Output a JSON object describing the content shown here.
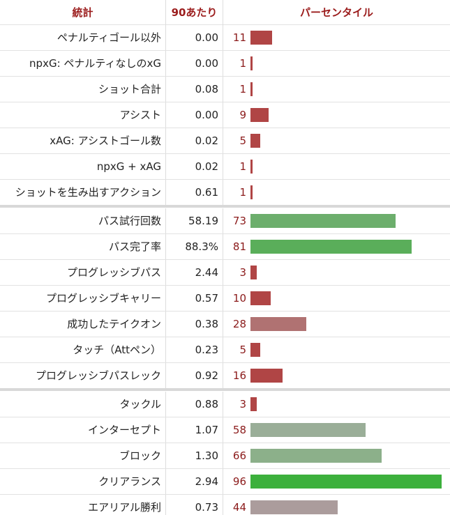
{
  "table": {
    "header": [
      "統計",
      "90あたり",
      "パーセンタイル"
    ],
    "groups": [
      [
        {
          "stat": "ペナルティゴール以外",
          "per90": "0.00",
          "percentile": 11,
          "color": "#b04545"
        },
        {
          "stat": "npxG: ペナルティなしのxG",
          "per90": "0.00",
          "percentile": 1,
          "color": "#b04545"
        },
        {
          "stat": "ショット合計",
          "per90": "0.08",
          "percentile": 1,
          "color": "#b04545"
        },
        {
          "stat": "アシスト",
          "per90": "0.00",
          "percentile": 9,
          "color": "#b04545"
        },
        {
          "stat": "xAG: アシストゴール数",
          "per90": "0.02",
          "percentile": 5,
          "color": "#b04545"
        },
        {
          "stat": "npxG + xAG",
          "per90": "0.02",
          "percentile": 1,
          "color": "#b04545"
        },
        {
          "stat": "ショットを生み出すアクション",
          "per90": "0.61",
          "percentile": 1,
          "color": "#b04545"
        }
      ],
      [
        {
          "stat": "パス試行回数",
          "per90": "58.19",
          "percentile": 73,
          "color": "#6cae6c"
        },
        {
          "stat": "パス完了率",
          "per90": "88.3%",
          "percentile": 81,
          "color": "#5aae5a"
        },
        {
          "stat": "プログレッシブパス",
          "per90": "2.44",
          "percentile": 3,
          "color": "#b04545"
        },
        {
          "stat": "プログレッシブキャリー",
          "per90": "0.57",
          "percentile": 10,
          "color": "#b04545"
        },
        {
          "stat": "成功したテイクオン",
          "per90": "0.38",
          "percentile": 28,
          "color": "#b07272"
        },
        {
          "stat": "タッチ（Attペン）",
          "per90": "0.23",
          "percentile": 5,
          "color": "#b04545"
        },
        {
          "stat": "プログレッシブパスレック",
          "per90": "0.92",
          "percentile": 16,
          "color": "#b04545"
        }
      ],
      [
        {
          "stat": "タックル",
          "per90": "0.88",
          "percentile": 3,
          "color": "#b04545"
        },
        {
          "stat": "インターセプト",
          "per90": "1.07",
          "percentile": 58,
          "color": "#9aae98"
        },
        {
          "stat": "ブロック",
          "per90": "1.30",
          "percentile": 66,
          "color": "#8cb08a"
        },
        {
          "stat": "クリアランス",
          "per90": "2.94",
          "percentile": 96,
          "color": "#3cb03c"
        },
        {
          "stat": "エアリアル勝利",
          "per90": "0.73",
          "percentile": 44,
          "color": "#ab9c9c"
        }
      ]
    ]
  }
}
